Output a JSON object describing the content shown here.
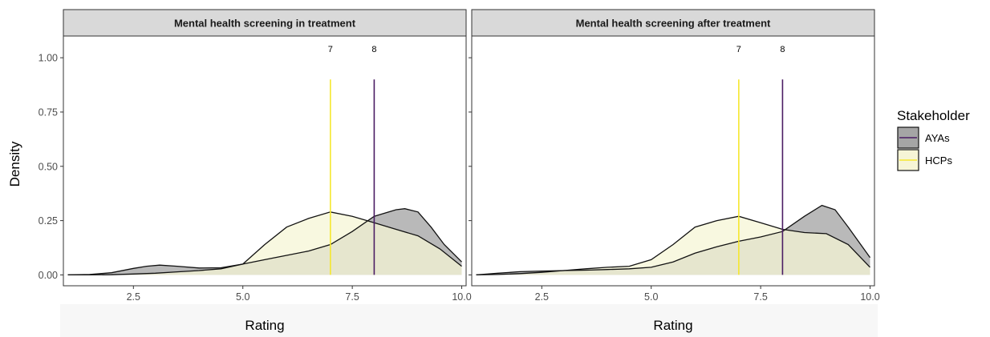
{
  "chart_data": {
    "type": "area",
    "ylabel": "Density",
    "xlabel": "Rating",
    "xlim": [
      0.9,
      10.1
    ],
    "ylim": [
      -0.05,
      1.1
    ],
    "x_ticks": [
      2.5,
      5.0,
      7.5,
      10.0
    ],
    "x_tick_labels": [
      "2.5",
      "5.0",
      "7.5",
      "10.0"
    ],
    "y_ticks": [
      0.0,
      0.25,
      0.5,
      0.75,
      1.0
    ],
    "y_tick_labels": [
      "0.00",
      "0.25",
      "0.50",
      "0.75",
      "1.00"
    ],
    "legend": {
      "title": "Stakeholder",
      "placement": "right",
      "entries": [
        {
          "label": "AYAs",
          "fill": "#7f7f7f",
          "line": "#4b1d64"
        },
        {
          "label": "HCPs",
          "fill": "#f6f5d6",
          "line": "#f5e72e"
        }
      ]
    },
    "series_colors": {
      "AYAs": {
        "fill": "#7f7f7f",
        "fill_opacity": 0.55,
        "line": "#4b1d64"
      },
      "HCPs": {
        "fill": "#f6f5d6",
        "fill_opacity": 0.75,
        "line": "#f5e72e"
      }
    },
    "panels": [
      {
        "title": "Mental health screening in treatment",
        "series": [
          {
            "name": "AYAs",
            "x": [
              1.0,
              1.5,
              2.0,
              2.5,
              2.8,
              3.1,
              3.5,
              4.0,
              4.5,
              5.0,
              5.5,
              6.0,
              6.5,
              7.0,
              7.5,
              8.0,
              8.5,
              8.7,
              9.0,
              9.3,
              9.6,
              10.0
            ],
            "y": [
              0.0,
              0.002,
              0.01,
              0.03,
              0.04,
              0.045,
              0.04,
              0.032,
              0.033,
              0.05,
              0.07,
              0.09,
              0.11,
              0.14,
              0.2,
              0.27,
              0.3,
              0.305,
              0.29,
              0.22,
              0.14,
              0.06
            ]
          },
          {
            "name": "HCPs",
            "x": [
              1.0,
              1.5,
              2.0,
              2.5,
              3.0,
              3.5,
              4.0,
              4.5,
              5.0,
              5.5,
              6.0,
              6.5,
              7.0,
              7.5,
              8.0,
              8.5,
              9.0,
              9.5,
              10.0
            ],
            "y": [
              0.0,
              0.0,
              0.001,
              0.004,
              0.008,
              0.014,
              0.02,
              0.028,
              0.05,
              0.14,
              0.22,
              0.26,
              0.29,
              0.27,
              0.24,
              0.21,
              0.18,
              0.12,
              0.04
            ]
          }
        ],
        "ref_lines": [
          {
            "series": "HCPs",
            "x": 7,
            "label": "7"
          },
          {
            "series": "AYAs",
            "x": 8,
            "label": "8"
          }
        ]
      },
      {
        "title": "Mental health screening after treatment",
        "series": [
          {
            "name": "AYAs",
            "x": [
              1.0,
              1.5,
              2.0,
              2.5,
              3.0,
              3.5,
              4.0,
              4.5,
              5.0,
              5.5,
              6.0,
              6.5,
              7.0,
              7.5,
              8.0,
              8.5,
              8.9,
              9.2,
              9.5,
              10.0
            ],
            "y": [
              0.0,
              0.008,
              0.015,
              0.018,
              0.02,
              0.022,
              0.025,
              0.028,
              0.035,
              0.06,
              0.1,
              0.13,
              0.155,
              0.175,
              0.2,
              0.27,
              0.32,
              0.3,
              0.22,
              0.08
            ]
          },
          {
            "name": "HCPs",
            "x": [
              1.0,
              1.5,
              2.0,
              2.5,
              3.0,
              3.5,
              4.0,
              4.5,
              5.0,
              5.5,
              6.0,
              6.5,
              7.0,
              7.5,
              8.0,
              8.5,
              9.0,
              9.5,
              10.0
            ],
            "y": [
              0.0,
              0.002,
              0.006,
              0.012,
              0.02,
              0.028,
              0.035,
              0.04,
              0.07,
              0.14,
              0.22,
              0.25,
              0.27,
              0.24,
              0.21,
              0.195,
              0.19,
              0.14,
              0.035
            ]
          }
        ],
        "ref_lines": [
          {
            "series": "HCPs",
            "x": 7,
            "label": "7"
          },
          {
            "series": "AYAs",
            "x": 8,
            "label": "8"
          }
        ]
      }
    ]
  }
}
